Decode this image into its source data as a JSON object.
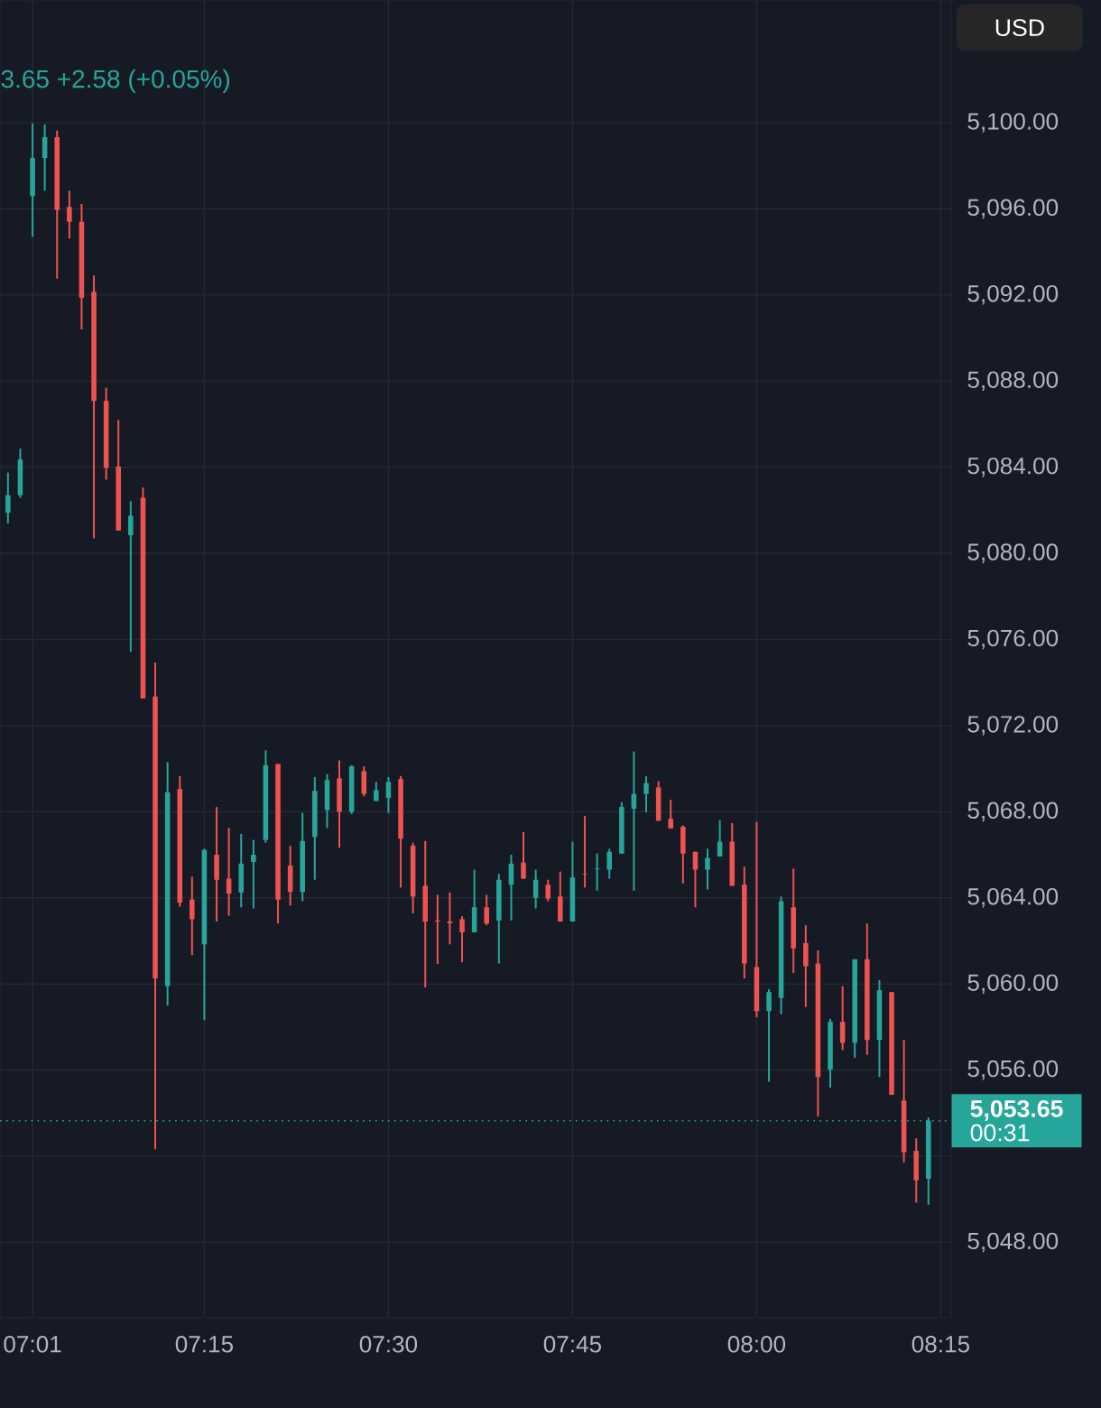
{
  "chart_data": {
    "type": "candlestick",
    "x": [
      6.9833,
      7.0,
      7.0167,
      7.0333,
      7.05,
      7.0667,
      7.0833,
      7.1,
      7.1167,
      7.1333,
      7.15,
      7.1667,
      7.1833,
      7.2,
      7.2167,
      7.2333,
      7.25,
      7.2667,
      7.2833,
      7.3,
      7.3167,
      7.3333,
      7.35,
      7.3667,
      7.3833,
      7.4,
      7.4167,
      7.4333,
      7.45,
      7.4667,
      7.4833,
      7.5,
      7.5167,
      7.5333,
      7.55,
      7.5667,
      7.5833,
      7.6,
      7.6167,
      7.6333,
      7.65,
      7.6667,
      7.6833,
      7.7,
      7.7167,
      7.7333,
      7.75,
      7.7667,
      7.7833,
      7.8,
      7.8167,
      7.8333,
      7.85,
      7.8667,
      7.8833,
      7.9,
      7.9167,
      7.9333,
      7.95,
      7.9667,
      7.9833,
      8.0,
      8.0167,
      8.0333,
      8.05,
      8.0667,
      8.0833,
      8.1,
      8.1167,
      8.1333,
      8.15,
      8.1667,
      8.1833,
      8.2,
      8.2167,
      8.2333
    ],
    "ohlc": [
      [
        5081.89,
        5083.75,
        5081.39,
        5082.7
      ],
      [
        5082.7,
        5084.86,
        5082.58,
        5084.36
      ],
      [
        5096.59,
        5099.97,
        5094.7,
        5098.36
      ],
      [
        5098.36,
        5099.92,
        5096.84,
        5099.33
      ],
      [
        5099.33,
        5099.64,
        5092.76,
        5095.95
      ],
      [
        5096.09,
        5096.84,
        5094.62,
        5095.4
      ],
      [
        5095.4,
        5096.23,
        5090.4,
        5091.87
      ],
      [
        5092.15,
        5092.9,
        5080.7,
        5087.08
      ],
      [
        5087.08,
        5087.69,
        5083.42,
        5083.97
      ],
      [
        5084.03,
        5086.19,
        5081.06,
        5081.06
      ],
      [
        5080.84,
        5082.42,
        5075.43,
        5081.75
      ],
      [
        5082.58,
        5083.06,
        5073.27,
        5073.27
      ],
      [
        5073.35,
        5074.93,
        5052.33,
        5060.26
      ],
      [
        5059.9,
        5070.3,
        5058.99,
        5068.91
      ],
      [
        5069.05,
        5069.66,
        5063.59,
        5063.78
      ],
      [
        5063.92,
        5064.98,
        5061.34,
        5063.01
      ],
      [
        5061.84,
        5066.28,
        5058.32,
        5066.22
      ],
      [
        5066.0,
        5068.22,
        5062.9,
        5064.84
      ],
      [
        5064.89,
        5067.25,
        5063.17,
        5064.2
      ],
      [
        5064.25,
        5066.97,
        5063.56,
        5065.59
      ],
      [
        5065.67,
        5066.69,
        5063.51,
        5066.0
      ],
      [
        5066.69,
        5070.85,
        5066.56,
        5070.16
      ],
      [
        5070.22,
        5070.22,
        5062.81,
        5063.92
      ],
      [
        5065.5,
        5066.42,
        5063.64,
        5064.28
      ],
      [
        5064.28,
        5067.94,
        5063.84,
        5066.64
      ],
      [
        5066.83,
        5069.61,
        5064.84,
        5068.97
      ],
      [
        5068.08,
        5069.74,
        5067.25,
        5069.47
      ],
      [
        5069.55,
        5070.38,
        5066.33,
        5068.0
      ],
      [
        5068.0,
        5070.16,
        5067.89,
        5070.11
      ],
      [
        5069.88,
        5070.11,
        5068.72,
        5068.83
      ],
      [
        5068.5,
        5069.38,
        5068.5,
        5069.0
      ],
      [
        5068.64,
        5069.61,
        5067.94,
        5069.38
      ],
      [
        5069.52,
        5069.66,
        5064.48,
        5066.75
      ],
      [
        5066.42,
        5066.56,
        5063.28,
        5064.06
      ],
      [
        5064.56,
        5066.64,
        5059.84,
        5062.9
      ],
      [
        5062.95,
        5064.14,
        5060.93,
        5062.9
      ],
      [
        5062.9,
        5064.25,
        5061.84,
        5062.82
      ],
      [
        5063.01,
        5063.15,
        5061.01,
        5062.4
      ],
      [
        5062.4,
        5065.31,
        5062.4,
        5063.56
      ],
      [
        5063.56,
        5064.14,
        5062.73,
        5062.81
      ],
      [
        5062.95,
        5065.11,
        5060.95,
        5064.84
      ],
      [
        5064.61,
        5066.0,
        5062.95,
        5065.59
      ],
      [
        5065.64,
        5067.05,
        5064.89,
        5064.89
      ],
      [
        5064.0,
        5065.31,
        5063.51,
        5064.84
      ],
      [
        5064.61,
        5064.84,
        5063.84,
        5063.97
      ],
      [
        5064.06,
        5065.22,
        5062.9,
        5062.9
      ],
      [
        5062.9,
        5066.61,
        5062.9,
        5064.95
      ],
      [
        5065.11,
        5067.8,
        5064.48,
        5065.08
      ],
      [
        5065.33,
        5066.06,
        5064.34,
        5065.36
      ],
      [
        5065.31,
        5066.28,
        5064.89,
        5066.14
      ],
      [
        5066.06,
        5068.44,
        5066.06,
        5068.22
      ],
      [
        5068.14,
        5070.8,
        5064.34,
        5068.83
      ],
      [
        5068.83,
        5069.66,
        5067.97,
        5069.33
      ],
      [
        5069.13,
        5069.41,
        5067.58,
        5067.58
      ],
      [
        5067.67,
        5068.55,
        5067.22,
        5067.22
      ],
      [
        5067.3,
        5067.37,
        5064.67,
        5066.06
      ],
      [
        5066.14,
        5066.14,
        5063.56,
        5065.31
      ],
      [
        5065.31,
        5066.28,
        5064.39,
        5065.86
      ],
      [
        5065.92,
        5067.61,
        5065.92,
        5066.61
      ],
      [
        5066.61,
        5067.47,
        5064.56,
        5064.56
      ],
      [
        5064.61,
        5065.45,
        5060.26,
        5060.95
      ],
      [
        5060.79,
        5067.53,
        5058.46,
        5058.74
      ],
      [
        5058.74,
        5059.76,
        5055.46,
        5059.62
      ],
      [
        5059.35,
        5064.06,
        5058.6,
        5063.84
      ],
      [
        5063.56,
        5065.36,
        5060.51,
        5061.65
      ],
      [
        5061.9,
        5062.73,
        5058.93,
        5060.82
      ],
      [
        5060.95,
        5061.56,
        5053.85,
        5055.68
      ],
      [
        5056.02,
        5058.38,
        5055.19,
        5058.24
      ],
      [
        5058.24,
        5059.9,
        5056.93,
        5057.27
      ],
      [
        5057.27,
        5061.15,
        5056.57,
        5061.15
      ],
      [
        5061.15,
        5062.81,
        5056.71,
        5057.4
      ],
      [
        5057.4,
        5060.18,
        5055.68,
        5059.71
      ],
      [
        5059.62,
        5059.62,
        5054.85,
        5054.85
      ],
      [
        5054.58,
        5057.4,
        5051.72,
        5052.19
      ],
      [
        5052.25,
        5052.83,
        5049.85,
        5050.88
      ],
      [
        5050.95,
        5053.8,
        5049.75,
        5053.65
      ]
    ],
    "colors": [
      "#26a69a",
      "#26a69a",
      "#26a69a",
      "#26a69a",
      "#ef5350",
      "#ef5350",
      "#ef5350",
      "#ef5350",
      "#ef5350",
      "#ef5350",
      "#26a69a",
      "#ef5350",
      "#ef5350",
      "#26a69a",
      "#ef5350",
      "#ef5350",
      "#26a69a",
      "#ef5350",
      "#ef5350",
      "#26a69a",
      "#26a69a",
      "#26a69a",
      "#ef5350",
      "#ef5350",
      "#26a69a",
      "#26a69a",
      "#26a69a",
      "#ef5350",
      "#26a69a",
      "#ef5350",
      "#26a69a",
      "#26a69a",
      "#ef5350",
      "#ef5350",
      "#ef5350",
      "#ef5350",
      "#ef5350",
      "#ef5350",
      "#26a69a",
      "#ef5350",
      "#26a69a",
      "#26a69a",
      "#ef5350",
      "#26a69a",
      "#ef5350",
      "#ef5350",
      "#26a69a",
      "#ef5350",
      "#26a69a",
      "#26a69a",
      "#26a69a",
      "#26a69a",
      "#26a69a",
      "#ef5350",
      "#ef5350",
      "#ef5350",
      "#ef5350",
      "#26a69a",
      "#26a69a",
      "#ef5350",
      "#ef5350",
      "#ef5350",
      "#26a69a",
      "#26a69a",
      "#ef5350",
      "#ef5350",
      "#ef5350",
      "#26a69a",
      "#ef5350",
      "#26a69a",
      "#ef5350",
      "#26a69a",
      "#ef5350",
      "#ef5350",
      "#ef5350",
      "#26a69a"
    ],
    "xlim": [
      6.9725,
      8.2642
    ],
    "xticks": [
      {
        "value": 7.0167,
        "label": "07:01"
      },
      {
        "value": 7.25,
        "label": "07:15"
      },
      {
        "value": 7.5,
        "label": "07:30"
      },
      {
        "value": 7.75,
        "label": "07:45"
      },
      {
        "value": 8.0,
        "label": "08:00"
      },
      {
        "value": 8.25,
        "label": "08:15"
      }
    ],
    "ylim": [
      5044.5,
      5105.7
    ],
    "yticks": [
      {
        "value": 5048,
        "label": "5,048.00"
      },
      {
        "value": 5052,
        "label": null
      },
      {
        "value": 5056,
        "label": "5,056.00"
      },
      {
        "value": 5060,
        "label": "5,060.00"
      },
      {
        "value": 5064,
        "label": "5,064.00"
      },
      {
        "value": 5068,
        "label": "5,068.00"
      },
      {
        "value": 5072,
        "label": "5,072.00"
      },
      {
        "value": 5076,
        "label": "5,076.00"
      },
      {
        "value": 5080,
        "label": "5,080.00"
      },
      {
        "value": 5084,
        "label": "5,084.00"
      },
      {
        "value": 5088,
        "label": "5,088.00"
      },
      {
        "value": 5092,
        "label": "5,092.00"
      },
      {
        "value": 5096,
        "label": "5,096.00"
      },
      {
        "value": 5100,
        "label": "5,100.00"
      }
    ],
    "grid": true,
    "ref_lines": [
      {
        "axis": "y",
        "value": 5053.65,
        "label": "5,053.65",
        "color": "#26a69a",
        "line_style": "dotted"
      }
    ],
    "annotations": [
      "3.65 +2.58 (+0.05%)",
      "USD",
      "00:31"
    ]
  }
}
